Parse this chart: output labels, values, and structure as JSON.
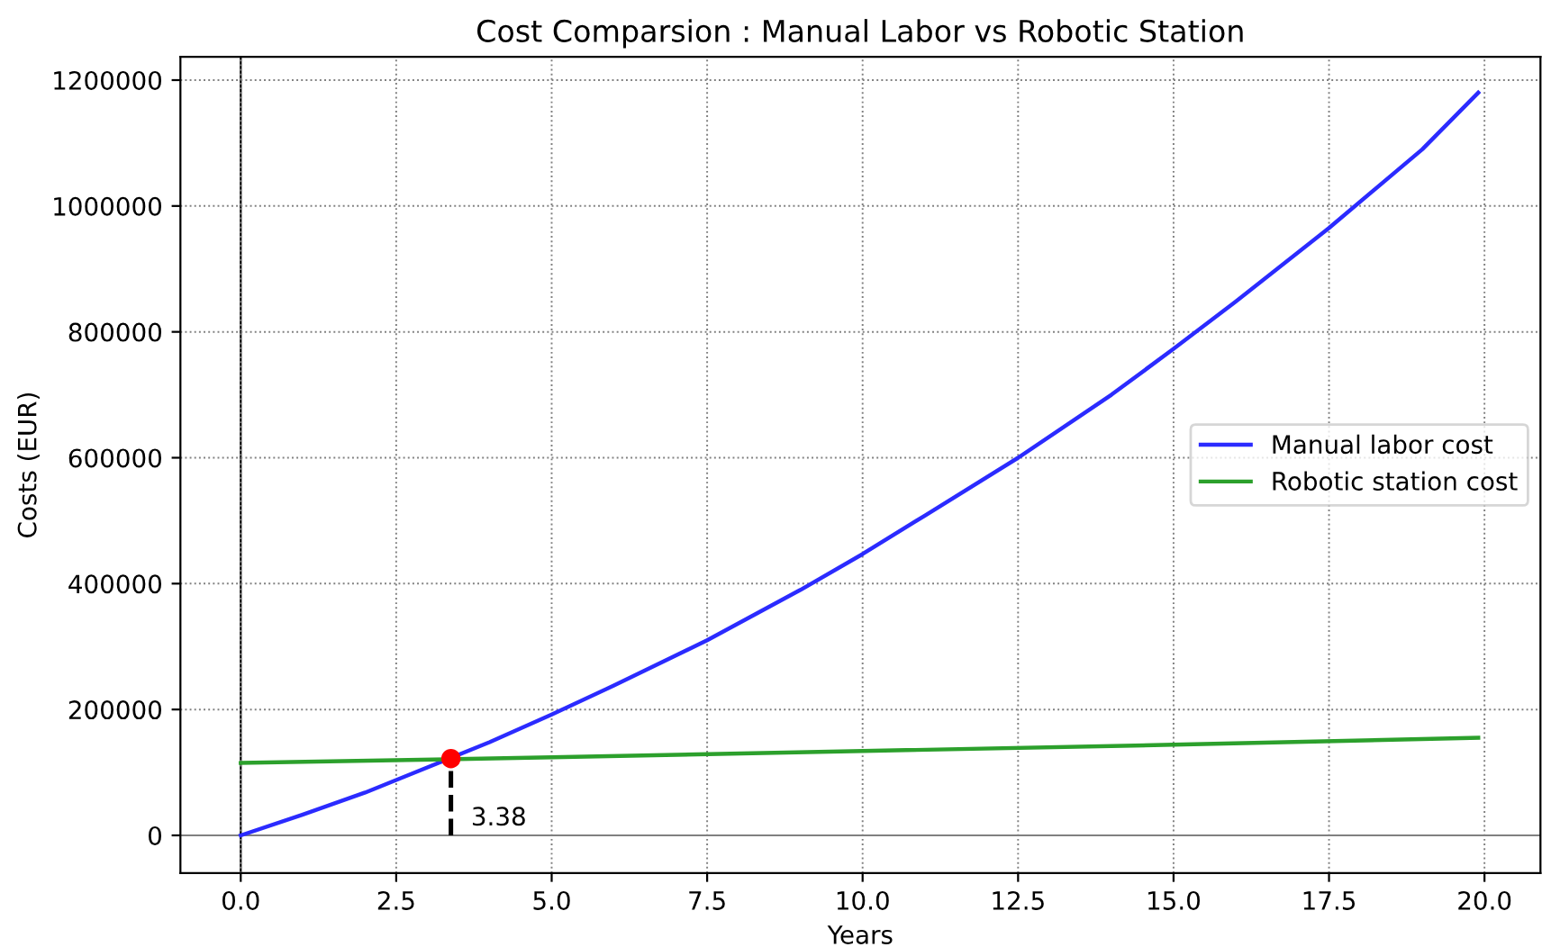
{
  "chart_data": {
    "type": "line",
    "title": "Cost Comparsion : Manual Labor vs Robotic Station",
    "xlabel": "Years",
    "ylabel": "Costs (EUR)",
    "series": [
      {
        "name": "Manual labor cost",
        "color": "#2b2bff",
        "x": [
          0,
          1,
          2,
          2.5,
          4,
          5,
          6,
          7.5,
          9,
          10,
          11,
          12.5,
          14,
          15,
          16,
          17.5,
          19,
          19.9
        ],
        "values": [
          0,
          33000,
          68000,
          88000,
          148000,
          192000,
          238000,
          310000,
          390000,
          447000,
          508000,
          600000,
          700000,
          773000,
          848000,
          965000,
          1090000,
          1180000
        ]
      },
      {
        "name": "Robotic station cost",
        "color": "#2ca02c",
        "x": [
          0,
          5,
          10,
          15,
          19.9
        ],
        "values": [
          115000,
          124000,
          134000,
          144000,
          155000
        ]
      },
      {
        "type": "line",
        "color": "#000000",
        "line_style": "dashed",
        "x": [
          3.38,
          3.38
        ],
        "values": [
          0,
          122000
        ]
      },
      {
        "type": "scatter",
        "color": "#ff0000",
        "marker": "circle",
        "x": [
          3.38
        ],
        "values": [
          122000
        ]
      }
    ],
    "annotations": [
      {
        "text": "3.38",
        "x": 3.38,
        "y": 0
      }
    ],
    "ref_lines": [
      {
        "axis": "x",
        "value": 0,
        "color": "#000000"
      },
      {
        "axis": "y",
        "value": 0,
        "color": "#808080"
      }
    ],
    "xlim": [
      -0.97,
      20.9
    ],
    "ylim": [
      -60000,
      1237000
    ],
    "xticks": [
      {
        "value": 0,
        "label": "0.0"
      },
      {
        "value": 2.5,
        "label": "2.5"
      },
      {
        "value": 5,
        "label": "5.0"
      },
      {
        "value": 7.5,
        "label": "7.5"
      },
      {
        "value": 10,
        "label": "10.0"
      },
      {
        "value": 12.5,
        "label": "12.5"
      },
      {
        "value": 15,
        "label": "15.0"
      },
      {
        "value": 17.5,
        "label": "17.5"
      },
      {
        "value": 20,
        "label": "20.0"
      }
    ],
    "yticks": [
      0,
      200000,
      400000,
      600000,
      800000,
      1000000,
      1200000
    ],
    "grid": true,
    "legend": "right",
    "line_style": "solid"
  }
}
